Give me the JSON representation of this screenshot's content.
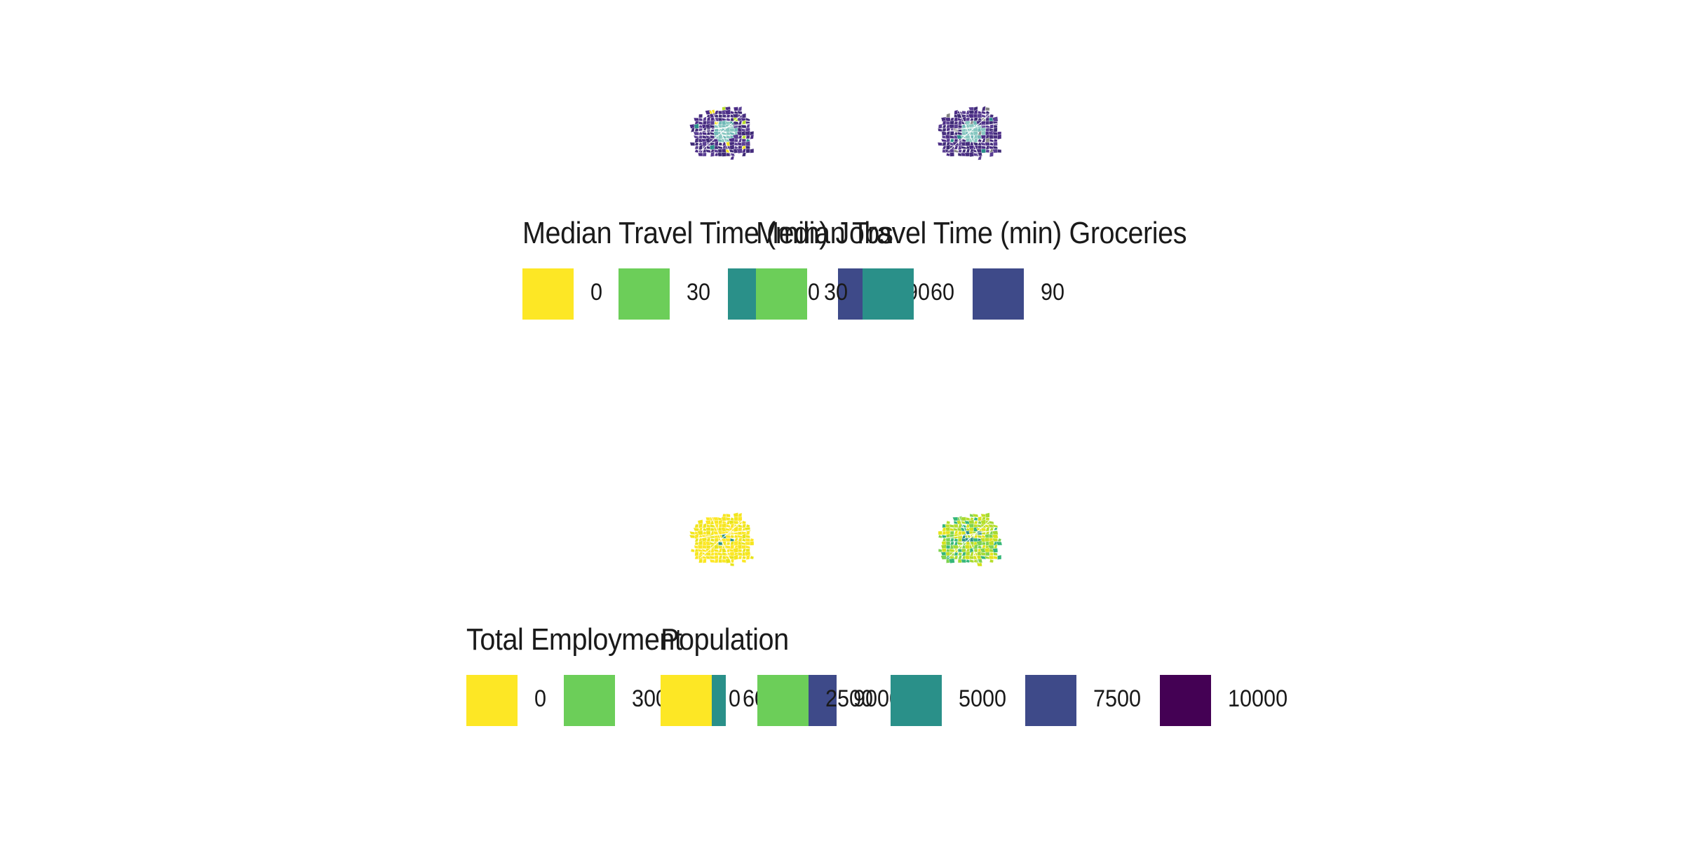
{
  "chart_data": [
    {
      "type": "map",
      "panel": "top-left",
      "title": "",
      "legend": {
        "title": "Median Travel Time (min) Jobs",
        "position": "bottom",
        "keys": [
          {
            "label": "0",
            "color": "#FDE725"
          },
          {
            "label": "30",
            "color": "#6CCE59"
          },
          {
            "label": "60",
            "color": "#2A9089"
          },
          {
            "label": "90",
            "color": "#3E4A89"
          }
        ]
      },
      "fill_palette": "viridis",
      "map_colors": [
        "#3E2A76",
        "#462D7E",
        "#4B2C86",
        "#5A3F93",
        "#6FB8B7",
        "#87C7C0",
        "#3F8B8C",
        "#F4E324",
        "#B8DE29",
        "#2A8F8A"
      ]
    },
    {
      "type": "map",
      "panel": "top-right",
      "title": "",
      "legend": {
        "title": "Median Travel Time (min) Groceries",
        "position": "bottom",
        "keys": [
          {
            "label": "30",
            "color": "#6CCE59"
          },
          {
            "label": "60",
            "color": "#2A9089"
          },
          {
            "label": "90",
            "color": "#3E4A89"
          }
        ]
      },
      "fill_palette": "viridis",
      "map_colors": [
        "#3E2A76",
        "#462D7E",
        "#4B2C86",
        "#5A3F93",
        "#6FB8B7",
        "#87C7C0",
        "#808080",
        "#8A8A8A",
        "#2A8F8A"
      ]
    },
    {
      "type": "map",
      "panel": "bottom-left",
      "title": "",
      "legend": {
        "title": "Total Employment",
        "position": "bottom",
        "keys": [
          {
            "label": "0",
            "color": "#FDE725"
          },
          {
            "label": "3000",
            "color": "#6CCE59"
          },
          {
            "label": "6000",
            "color": "#2A9089"
          },
          {
            "label": "9000",
            "color": "#3E4A89"
          }
        ]
      },
      "fill_palette": "viridis",
      "map_colors": [
        "#FDE725",
        "#F6E61F",
        "#F1E51D",
        "#FBE723",
        "#E8E419",
        "#2A9089"
      ]
    },
    {
      "type": "map",
      "panel": "bottom-right",
      "title": "",
      "legend": {
        "title": "Population",
        "position": "bottom",
        "keys": [
          {
            "label": "0",
            "color": "#FDE725"
          },
          {
            "label": "2500",
            "color": "#6CCE59"
          },
          {
            "label": "5000",
            "color": "#2A9089"
          },
          {
            "label": "7500",
            "color": "#3E4A89"
          },
          {
            "label": "10000",
            "color": "#440154"
          }
        ]
      },
      "fill_palette": "viridis",
      "map_colors": [
        "#C2DF23",
        "#D5E21A",
        "#B5DE2B",
        "#A5DA31",
        "#E7E419",
        "#7ED34F",
        "#35B779",
        "#2A9089"
      ]
    }
  ]
}
